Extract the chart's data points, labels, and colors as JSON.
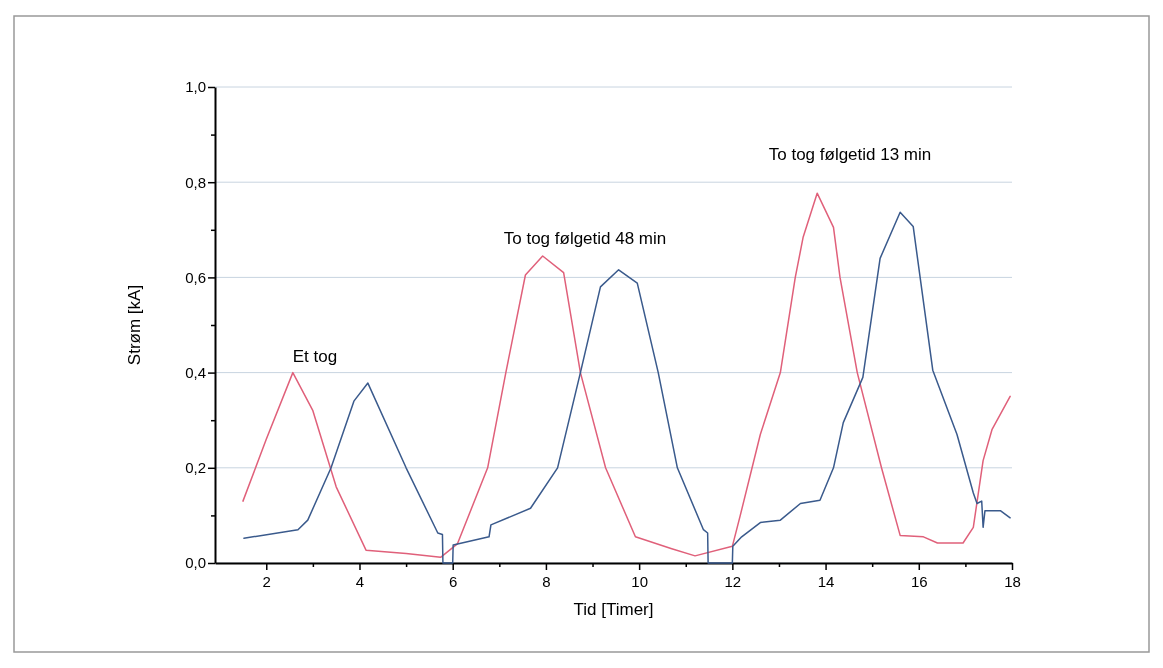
{
  "chart_data": {
    "type": "line",
    "xlabel": "Tid [Timer]",
    "ylabel": "Strøm [kA]",
    "xlim": [
      0.9,
      18
    ],
    "ylim": [
      0,
      1
    ],
    "xticks": [
      2,
      {
        "value": 3,
        "label": null
      },
      4,
      {
        "value": 5,
        "label": null
      },
      6,
      {
        "value": 7,
        "label": null
      },
      8,
      {
        "value": 9,
        "label": null
      },
      10,
      {
        "value": 11,
        "label": null
      },
      12,
      {
        "value": 13,
        "label": null
      },
      14,
      {
        "value": 15,
        "label": null
      },
      16,
      {
        "value": 17,
        "label": null
      },
      18
    ],
    "yticks": [
      {
        "value": 0,
        "label": "0,0"
      },
      {
        "value": 0.1,
        "label": null
      },
      {
        "value": 0.2,
        "label": "0,2"
      },
      {
        "value": 0.3,
        "label": null
      },
      {
        "value": 0.4,
        "label": "0,4"
      },
      {
        "value": 0.5,
        "label": null
      },
      {
        "value": 0.6,
        "label": "0,6"
      },
      {
        "value": 0.7,
        "label": null
      },
      {
        "value": 0.8,
        "label": "0,8"
      },
      {
        "value": 0.9,
        "label": null
      },
      {
        "value": 1,
        "label": "1,0"
      }
    ],
    "grid": "y",
    "marker": "none",
    "line_style": "solid",
    "annotations": [
      "Et tog",
      "To tog følgetid 48 min",
      "To tog følgetid 13 min"
    ],
    "series": [
      {
        "color": "#e0607a",
        "x": [
          1.5,
          2.0,
          2.57,
          3.0,
          3.5,
          4.14,
          5.0,
          5.74,
          6.1,
          6.75,
          7.14,
          7.56,
          7.93,
          8.38,
          8.74,
          9.28,
          9.92,
          10.7,
          11.2,
          12.0,
          12.17,
          12.6,
          13.03,
          13.35,
          13.52,
          13.82,
          14.17,
          14.31,
          14.68,
          15.2,
          15.6,
          16.1,
          16.4,
          16.95,
          17.17,
          17.38,
          17.57,
          17.96
        ],
        "values": [
          0.13,
          0.26,
          0.4,
          0.32,
          0.16,
          0.027,
          0.02,
          0.012,
          0.04,
          0.2,
          0.4,
          0.605,
          0.645,
          0.61,
          0.4,
          0.2,
          0.055,
          0.03,
          0.015,
          0.035,
          0.1,
          0.27,
          0.4,
          0.6,
          0.685,
          0.777,
          0.705,
          0.6,
          0.4,
          0.2,
          0.058,
          0.055,
          0.042,
          0.042,
          0.075,
          0.215,
          0.28,
          0.35
        ]
      },
      {
        "color": "#3a5a8c",
        "x": [
          1.52,
          2.68,
          2.89,
          3.39,
          3.88,
          4.18,
          5.0,
          5.68,
          5.78,
          5.79,
          6.0,
          6.01,
          6.78,
          6.82,
          7.67,
          8.25,
          8.74,
          9.17,
          9.56,
          9.96,
          10.41,
          10.82,
          11.38,
          11.47,
          11.48,
          12.0,
          12.01,
          12.2,
          12.6,
          13.03,
          13.46,
          13.88,
          14.17,
          14.38,
          14.8,
          15.17,
          15.6,
          15.88,
          16.3,
          16.82,
          17.17,
          17.25,
          17.35,
          17.38,
          17.42,
          17.75,
          17.96
        ],
        "values": [
          0.052,
          0.07,
          0.09,
          0.2,
          0.34,
          0.378,
          0.2,
          0.063,
          0.06,
          0,
          0,
          0.038,
          0.055,
          0.08,
          0.115,
          0.2,
          0.4,
          0.58,
          0.616,
          0.588,
          0.4,
          0.2,
          0.07,
          0.063,
          0,
          0,
          0.035,
          0.055,
          0.085,
          0.09,
          0.125,
          0.132,
          0.2,
          0.295,
          0.39,
          0.64,
          0.737,
          0.707,
          0.405,
          0.27,
          0.147,
          0.125,
          0.13,
          0.075,
          0.11,
          0.11,
          0.095
        ]
      }
    ]
  }
}
